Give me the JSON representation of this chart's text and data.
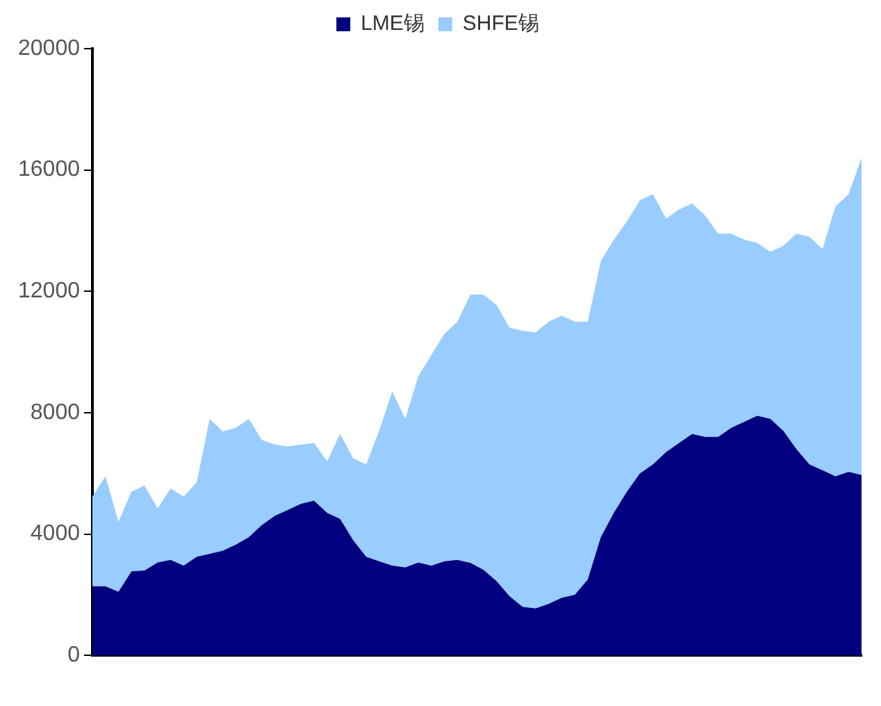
{
  "chart_data": {
    "type": "area",
    "stacked": true,
    "legend": "top",
    "grid": false,
    "categories": [
      null,
      null,
      null,
      null,
      null,
      null,
      null,
      null,
      null,
      null,
      null,
      null,
      null,
      null,
      null,
      null,
      null,
      null,
      null,
      null,
      null,
      null,
      null,
      null,
      null,
      null,
      null,
      null,
      null,
      null,
      null,
      null,
      null,
      null,
      null,
      null,
      null,
      null,
      null,
      null,
      null,
      null,
      null,
      null,
      null,
      null,
      null,
      null,
      null,
      null,
      null,
      null,
      null,
      null,
      null,
      null,
      null,
      null,
      null,
      null
    ],
    "ylim": [
      0,
      20000
    ],
    "yticks": [
      0,
      4000,
      8000,
      12000,
      16000,
      20000
    ],
    "series": [
      {
        "name": "LME锡",
        "color": "#000080",
        "values": [
          2280,
          2280,
          2100,
          2770,
          2800,
          3060,
          3150,
          2960,
          3250,
          3350,
          3450,
          3650,
          3900,
          4300,
          4600,
          4800,
          5000,
          5100,
          4700,
          4500,
          3800,
          3250,
          3100,
          2960,
          2900,
          3060,
          2960,
          3100,
          3150,
          3050,
          2820,
          2450,
          1950,
          1600,
          1550,
          1700,
          1900,
          2000,
          2500,
          3900,
          4700,
          5400,
          6000,
          6300,
          6700,
          7000,
          7300,
          7200,
          7200,
          7500,
          7700,
          7900,
          7800,
          7400,
          6800,
          6300,
          6100,
          5900,
          6050,
          5950
        ]
      },
      {
        "name": "SHFE锡",
        "color": "#99ccff",
        "values": [
          2960,
          3620,
          2300,
          2630,
          2800,
          1790,
          2350,
          2280,
          2450,
          4450,
          3930,
          3850,
          3900,
          2800,
          2350,
          2090,
          1950,
          1900,
          1700,
          2800,
          2700,
          3050,
          4300,
          5740,
          4900,
          6140,
          6940,
          7500,
          7850,
          8850,
          9070,
          9100,
          8850,
          9100,
          9100,
          9300,
          9300,
          9000,
          8500,
          9100,
          9000,
          8900,
          9000,
          8900,
          7700,
          7700,
          7600,
          7300,
          6700,
          6400,
          6000,
          5700,
          5500,
          6100,
          7100,
          7500,
          7300,
          8900,
          9150,
          10450
        ]
      }
    ]
  }
}
